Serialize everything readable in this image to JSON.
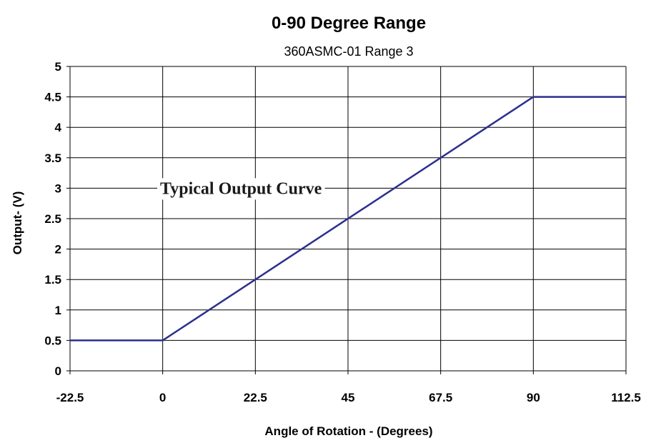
{
  "chart_data": {
    "type": "line",
    "title": "0-90 Degree Range",
    "subtitle": "360ASMC-01 Range 3",
    "xlabel": "Angle of Rotation - (Degrees)",
    "ylabel": "Output- (V)",
    "xlim": [
      -22.5,
      112.5
    ],
    "ylim": [
      0,
      5
    ],
    "x_ticks": [
      -22.5,
      0,
      22.5,
      45,
      67.5,
      90,
      112.5
    ],
    "x_tick_labels": [
      "-22.5",
      "0",
      "22.5",
      "45",
      "67.5",
      "90",
      "112.5"
    ],
    "y_ticks": [
      0,
      0.5,
      1,
      1.5,
      2,
      2.5,
      3,
      3.5,
      4,
      4.5,
      5
    ],
    "y_tick_labels": [
      "0",
      "0.5",
      "1",
      "1.5",
      "2",
      "2.5",
      "3",
      "3.5",
      "4",
      "4.5",
      "5"
    ],
    "grid": true,
    "series": [
      {
        "color": "#2b2f8c",
        "points": [
          {
            "x": -22.5,
            "y": 0.5
          },
          {
            "x": 0,
            "y": 0.5
          },
          {
            "x": 90,
            "y": 4.5
          },
          {
            "x": 112.5,
            "y": 4.5
          }
        ]
      }
    ],
    "annotations": [
      {
        "text": "Typical Output Curve",
        "x": 19,
        "y": 3
      }
    ],
    "colors": {
      "line": "#2b2f8c",
      "grid": "#000000",
      "background": "#ffffff"
    }
  }
}
